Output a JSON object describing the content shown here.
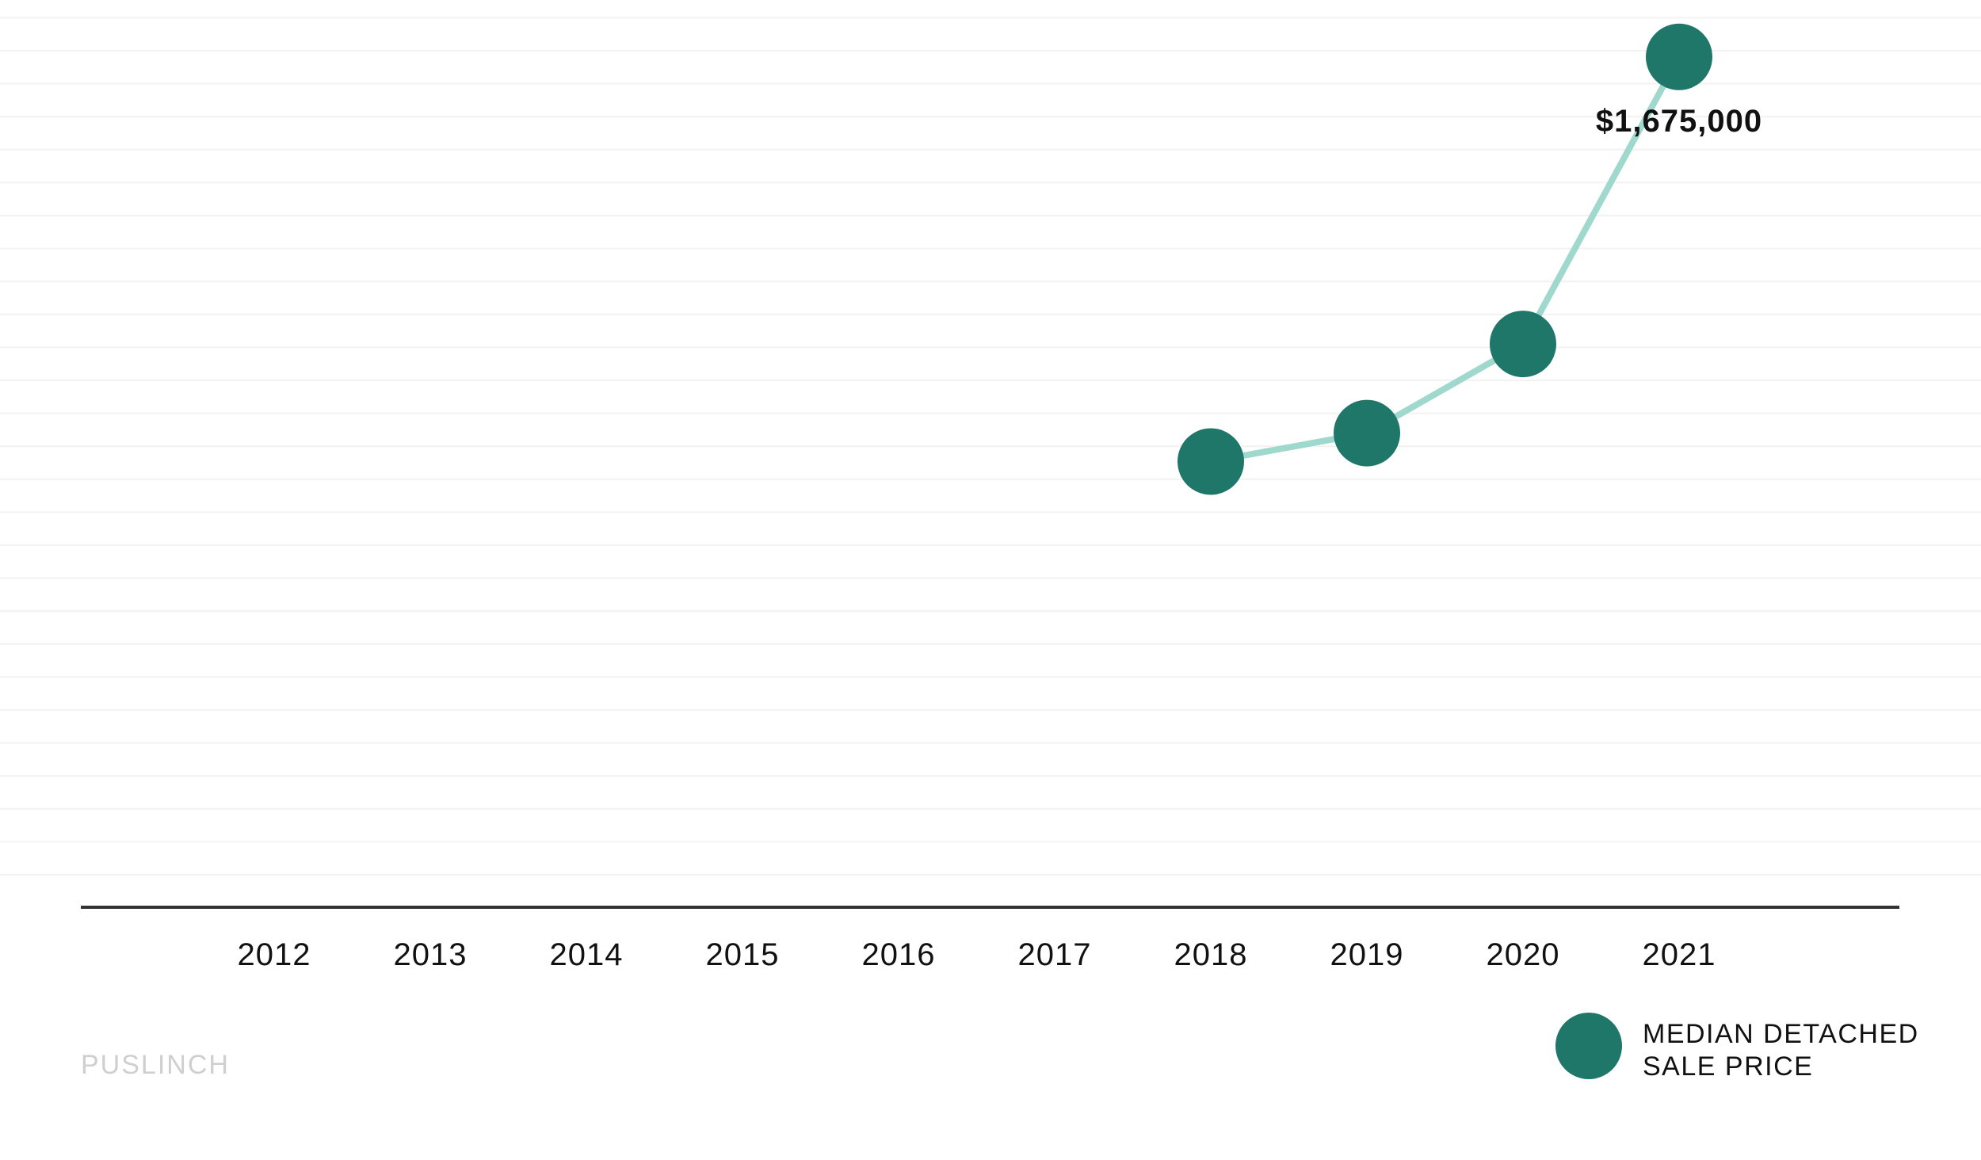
{
  "chart_data": {
    "type": "line",
    "categories": [
      "2012",
      "2013",
      "2014",
      "2015",
      "2016",
      "2017",
      "2018",
      "2019",
      "2020",
      "2021"
    ],
    "series": [
      {
        "name": "MEDIAN DETACHED SALE PRICE",
        "values": [
          null,
          null,
          null,
          null,
          null,
          null,
          935000,
          987000,
          1150000,
          1675000
        ]
      }
    ],
    "annotations": [
      {
        "category": "2021",
        "text": "$1,675,000"
      }
    ],
    "ylim": [
      120000,
      1750000
    ],
    "grid": true,
    "legend": {
      "position": "bottom-right",
      "lines": [
        "MEDIAN DETACHED",
        "SALE PRICE"
      ]
    },
    "footer": "PUSLINCH",
    "colors": {
      "marker": "#1f7769",
      "line": "#9fd8cc",
      "axis": "#333333",
      "grid": "#f2f2f2",
      "footer": "#cfcfcf"
    }
  }
}
